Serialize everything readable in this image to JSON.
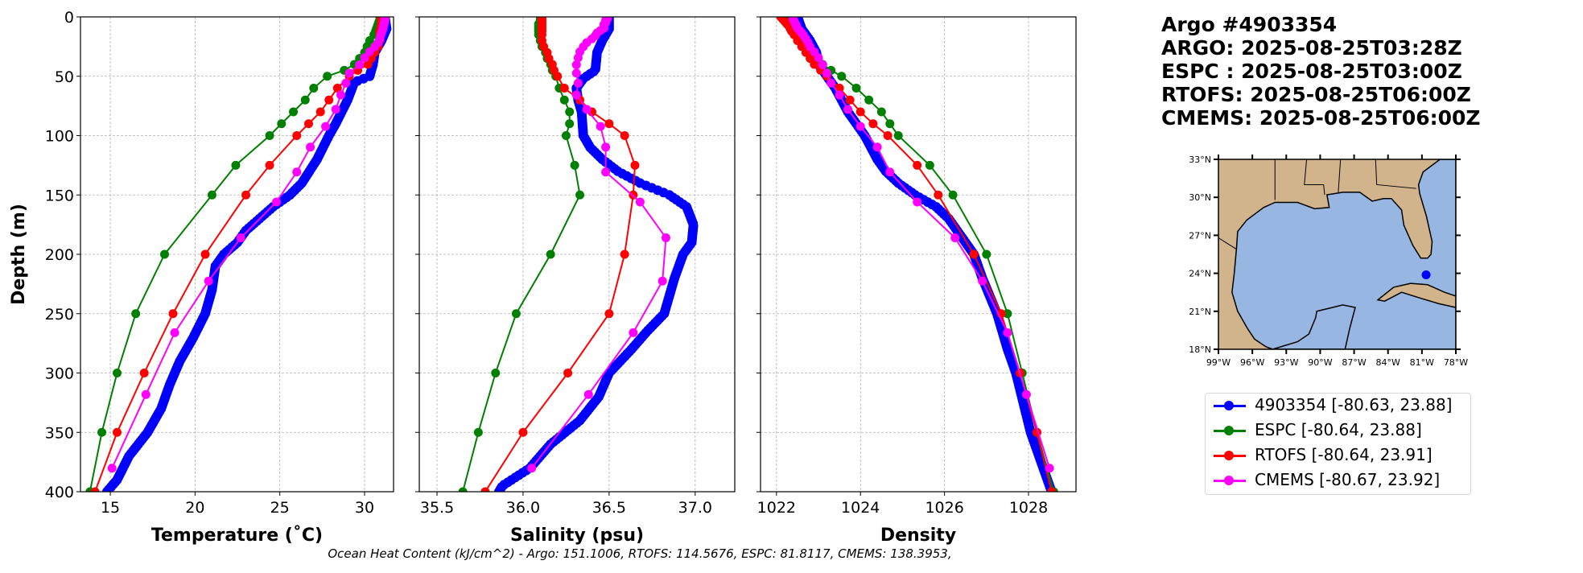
{
  "title": {
    "line1": "Argo #4903354",
    "line2": "ARGO: 2025-08-25T03:28Z",
    "line3": "ESPC : 2025-08-25T03:00Z",
    "line4": "RTOFS: 2025-08-25T06:00Z",
    "line5": "CMEMS: 2025-08-25T06:00Z"
  },
  "footer": "Ocean Heat Content (kJ/cm^2) - Argo: 151.1006,  RTOFS: 114.5676,  ESPC: 81.8117,  CMEMS: 138.3953,",
  "legend": [
    {
      "label": "4903354 [-80.63, 23.88]",
      "color": "#0000ff"
    },
    {
      "label": "ESPC [-80.64, 23.88]",
      "color": "#008000"
    },
    {
      "label": "RTOFS [-80.64, 23.91]",
      "color": "#ff0000"
    },
    {
      "label": "CMEMS [-80.67, 23.92]",
      "color": "#ff00ff"
    }
  ],
  "map": {
    "lat_ticks": [
      "18°N",
      "21°N",
      "24°N",
      "27°N",
      "30°N",
      "33°N"
    ],
    "lat_values": [
      18,
      21,
      24,
      27,
      30,
      33
    ],
    "lon_ticks": [
      "99°W",
      "96°W",
      "93°W",
      "90°W",
      "87°W",
      "84°W",
      "81°W",
      "78°W"
    ],
    "lon_values": [
      -99,
      -96,
      -93,
      -90,
      -87,
      -84,
      -81,
      -78
    ],
    "float_position": [
      -80.63,
      23.88
    ],
    "land_color": "#d2b48c",
    "water_color": "#97b6e1"
  },
  "chart_data": [
    {
      "type": "line",
      "xlabel": "Temperature (˚C)",
      "ylabel": "Depth (m)",
      "xlim": [
        13.24,
        31.71
      ],
      "ylim": [
        400,
        0
      ],
      "xticks": [
        15,
        20,
        25,
        30
      ],
      "yticks": [
        0,
        50,
        100,
        150,
        200,
        250,
        300,
        350,
        400
      ],
      "grid": true,
      "series": [
        {
          "name": "4903354",
          "color": "#0000ff",
          "dense": true,
          "depth": [
            0,
            10,
            20,
            30,
            40,
            50,
            55,
            70,
            90,
            100,
            120,
            140,
            150,
            160,
            170,
            180,
            190,
            200,
            210,
            230,
            250,
            270,
            290,
            310,
            330,
            350,
            370,
            390,
            400
          ],
          "values": [
            31.2,
            31.3,
            31.0,
            30.6,
            30.5,
            30.3,
            29.4,
            29.0,
            28.3,
            27.9,
            27.2,
            26.3,
            25.6,
            24.6,
            23.8,
            23.0,
            22.5,
            21.7,
            21.2,
            21.0,
            20.6,
            19.9,
            19.1,
            18.5,
            18.0,
            17.2,
            16.1,
            15.4,
            14.8
          ]
        },
        {
          "name": "ESPC",
          "color": "#008000",
          "depth": [
            0,
            2,
            4,
            6,
            8,
            10,
            12,
            15,
            20,
            25,
            30,
            35,
            40,
            45,
            50,
            60,
            70,
            80,
            90,
            100,
            125,
            150,
            200,
            250,
            300,
            350,
            400
          ],
          "values": [
            30.9,
            30.9,
            30.85,
            30.8,
            30.75,
            30.7,
            30.65,
            30.55,
            30.3,
            30.15,
            30.0,
            29.7,
            29.4,
            28.8,
            27.8,
            27.0,
            26.5,
            25.8,
            25.1,
            24.4,
            22.4,
            21.0,
            18.2,
            16.5,
            15.4,
            14.5,
            13.8
          ]
        },
        {
          "name": "RTOFS",
          "color": "#ff0000",
          "depth": [
            0,
            2,
            4,
            6,
            8,
            10,
            12,
            15,
            20,
            25,
            30,
            35,
            40,
            45,
            50,
            60,
            70,
            80,
            90,
            100,
            125,
            150,
            200,
            250,
            300,
            350,
            400
          ],
          "values": [
            31.0,
            31.0,
            31.0,
            31.0,
            30.95,
            30.95,
            30.9,
            30.9,
            30.9,
            30.8,
            30.6,
            30.4,
            30.2,
            29.6,
            29.1,
            28.4,
            27.9,
            27.4,
            26.7,
            26.0,
            24.4,
            23.0,
            20.6,
            18.7,
            17.0,
            15.4,
            14.1
          ]
        },
        {
          "name": "CMEMS",
          "color": "#ff00ff",
          "depth": [
            0.5,
            1.5,
            2.6,
            3.8,
            5.1,
            6.4,
            7.9,
            9.6,
            11.4,
            13.5,
            15.8,
            18.5,
            21.6,
            25.2,
            29.4,
            34.4,
            40.3,
            47.4,
            55.8,
            65.8,
            77.9,
            92.3,
            109.7,
            130.7,
            155.9,
            186.1,
            222.5,
            266.0,
            318.1,
            380.2
          ],
          "values": [
            31.2,
            31.2,
            31.2,
            31.2,
            31.15,
            31.15,
            31.1,
            31.1,
            31.05,
            31.0,
            30.95,
            30.9,
            30.8,
            30.6,
            30.3,
            30.0,
            29.7,
            29.1,
            28.9,
            28.6,
            28.3,
            27.7,
            26.8,
            26.0,
            24.8,
            22.7,
            20.8,
            18.8,
            17.1,
            15.1
          ]
        }
      ]
    },
    {
      "type": "line",
      "xlabel": "Salinity (psu)",
      "xlim": [
        35.397,
        37.23
      ],
      "ylim": [
        400,
        0
      ],
      "xticks": [
        35.5,
        36.0,
        36.5,
        37.0
      ],
      "xtick_labels": [
        "35.5",
        "36.0",
        "36.5",
        "37.0"
      ],
      "grid": true,
      "series": [
        {
          "name": "4903354",
          "color": "#0000ff",
          "dense": true,
          "depth": [
            0,
            10,
            20,
            30,
            45,
            52,
            60,
            70,
            80,
            100,
            110,
            120,
            130,
            140,
            150,
            160,
            175,
            190,
            200,
            220,
            250,
            265,
            280,
            300,
            320,
            340,
            360,
            380,
            395,
            400
          ],
          "values": [
            36.5,
            36.5,
            36.46,
            36.43,
            36.42,
            36.35,
            36.31,
            36.32,
            36.34,
            36.35,
            36.39,
            36.46,
            36.55,
            36.68,
            36.85,
            36.95,
            36.99,
            36.98,
            36.93,
            36.88,
            36.82,
            36.72,
            36.63,
            36.5,
            36.44,
            36.33,
            36.16,
            36.04,
            35.88,
            35.86
          ]
        },
        {
          "name": "ESPC",
          "color": "#008000",
          "depth": [
            0,
            2,
            4,
            6,
            8,
            10,
            12,
            15,
            20,
            25,
            30,
            35,
            40,
            45,
            50,
            60,
            70,
            80,
            90,
            100,
            125,
            150,
            200,
            250,
            300,
            350,
            400
          ],
          "values": [
            36.1,
            36.1,
            36.1,
            36.09,
            36.09,
            36.09,
            36.09,
            36.09,
            36.1,
            36.11,
            36.13,
            36.14,
            36.16,
            36.17,
            36.19,
            36.21,
            36.24,
            36.27,
            36.27,
            36.25,
            36.3,
            36.33,
            36.16,
            35.96,
            35.84,
            35.74,
            35.65
          ]
        },
        {
          "name": "RTOFS",
          "color": "#ff0000",
          "depth": [
            0,
            2,
            4,
            6,
            8,
            10,
            12,
            15,
            20,
            25,
            30,
            35,
            40,
            45,
            50,
            60,
            70,
            80,
            90,
            100,
            125,
            150,
            200,
            250,
            300,
            350,
            400
          ],
          "values": [
            36.11,
            36.11,
            36.11,
            36.11,
            36.11,
            36.11,
            36.11,
            36.11,
            36.11,
            36.12,
            36.14,
            36.15,
            36.17,
            36.18,
            36.2,
            36.24,
            36.33,
            36.4,
            36.5,
            36.59,
            36.65,
            36.64,
            36.59,
            36.5,
            36.26,
            36.0,
            35.78
          ]
        },
        {
          "name": "CMEMS",
          "color": "#ff00ff",
          "depth": [
            0.5,
            1.5,
            2.6,
            3.8,
            5.1,
            6.4,
            7.9,
            9.6,
            11.4,
            13.5,
            15.8,
            18.5,
            21.6,
            25.2,
            29.4,
            34.4,
            40.3,
            47.4,
            55.8,
            65.8,
            77.9,
            92.3,
            109.7,
            130.7,
            155.9,
            186.1,
            222.5,
            266.0,
            318.1,
            380.2
          ],
          "values": [
            36.49,
            36.49,
            36.48,
            36.48,
            36.48,
            36.47,
            36.47,
            36.47,
            36.45,
            36.43,
            36.42,
            36.4,
            36.37,
            36.35,
            36.33,
            36.32,
            36.31,
            36.31,
            36.32,
            36.31,
            36.37,
            36.45,
            36.48,
            36.48,
            36.68,
            36.83,
            36.81,
            36.64,
            36.38,
            36.05
          ]
        }
      ]
    },
    {
      "type": "line",
      "xlabel": "Density",
      "xlim": [
        1021.62,
        1029.13
      ],
      "ylim": [
        400,
        0
      ],
      "xticks": [
        1022,
        1024,
        1026,
        1028
      ],
      "grid": true,
      "series": [
        {
          "name": "4903354",
          "color": "#0000ff",
          "dense": true,
          "depth": [
            0,
            10,
            20,
            30,
            40,
            50,
            60,
            80,
            100,
            120,
            130,
            140,
            150,
            160,
            170,
            180,
            200,
            220,
            250,
            280,
            300,
            350,
            400
          ],
          "values": [
            1022.5,
            1022.6,
            1022.8,
            1022.95,
            1023.0,
            1023.2,
            1023.4,
            1023.7,
            1024.1,
            1024.4,
            1024.6,
            1024.9,
            1025.3,
            1025.8,
            1026.1,
            1026.3,
            1026.7,
            1026.9,
            1027.25,
            1027.5,
            1027.7,
            1028.05,
            1028.55
          ]
        },
        {
          "name": "ESPC",
          "color": "#008000",
          "depth": [
            0,
            2,
            4,
            6,
            8,
            10,
            12,
            15,
            20,
            25,
            30,
            35,
            40,
            45,
            50,
            60,
            70,
            80,
            90,
            100,
            125,
            150,
            200,
            250,
            300,
            350,
            400
          ],
          "values": [
            1022.2,
            1022.22,
            1022.25,
            1022.27,
            1022.3,
            1022.33,
            1022.36,
            1022.42,
            1022.55,
            1022.7,
            1022.85,
            1023.0,
            1023.1,
            1023.3,
            1023.55,
            1023.9,
            1024.2,
            1024.5,
            1024.7,
            1024.9,
            1025.65,
            1026.2,
            1027.0,
            1027.5,
            1027.85,
            1028.2,
            1028.6
          ]
        },
        {
          "name": "RTOFS",
          "color": "#ff0000",
          "depth": [
            0,
            2,
            4,
            6,
            8,
            10,
            12,
            15,
            20,
            25,
            30,
            35,
            40,
            45,
            50,
            60,
            70,
            80,
            90,
            100,
            125,
            150,
            200,
            250,
            300,
            350,
            400
          ],
          "values": [
            1022.1,
            1022.15,
            1022.2,
            1022.25,
            1022.3,
            1022.33,
            1022.36,
            1022.42,
            1022.5,
            1022.6,
            1022.7,
            1022.8,
            1022.9,
            1023.05,
            1023.2,
            1023.5,
            1023.75,
            1024.0,
            1024.3,
            1024.65,
            1025.35,
            1025.85,
            1026.7,
            1027.35,
            1027.8,
            1028.2,
            1028.55
          ]
        },
        {
          "name": "CMEMS",
          "color": "#ff00ff",
          "depth": [
            0.5,
            1.5,
            2.6,
            3.8,
            5.1,
            6.4,
            7.9,
            9.6,
            11.4,
            13.5,
            15.8,
            18.5,
            21.6,
            25.2,
            29.4,
            34.4,
            40.3,
            47.4,
            55.8,
            65.8,
            77.9,
            92.3,
            109.7,
            130.7,
            155.9,
            186.1,
            222.5,
            266.0,
            318.1,
            380.2
          ],
          "values": [
            1022.4,
            1022.4,
            1022.4,
            1022.42,
            1022.44,
            1022.46,
            1022.48,
            1022.5,
            1022.55,
            1022.6,
            1022.65,
            1022.7,
            1022.75,
            1022.8,
            1022.9,
            1023.0,
            1023.1,
            1023.2,
            1023.3,
            1023.5,
            1023.7,
            1024.0,
            1024.4,
            1024.7,
            1025.35,
            1026.25,
            1026.9,
            1027.5,
            1027.95,
            1028.5
          ]
        }
      ]
    }
  ]
}
